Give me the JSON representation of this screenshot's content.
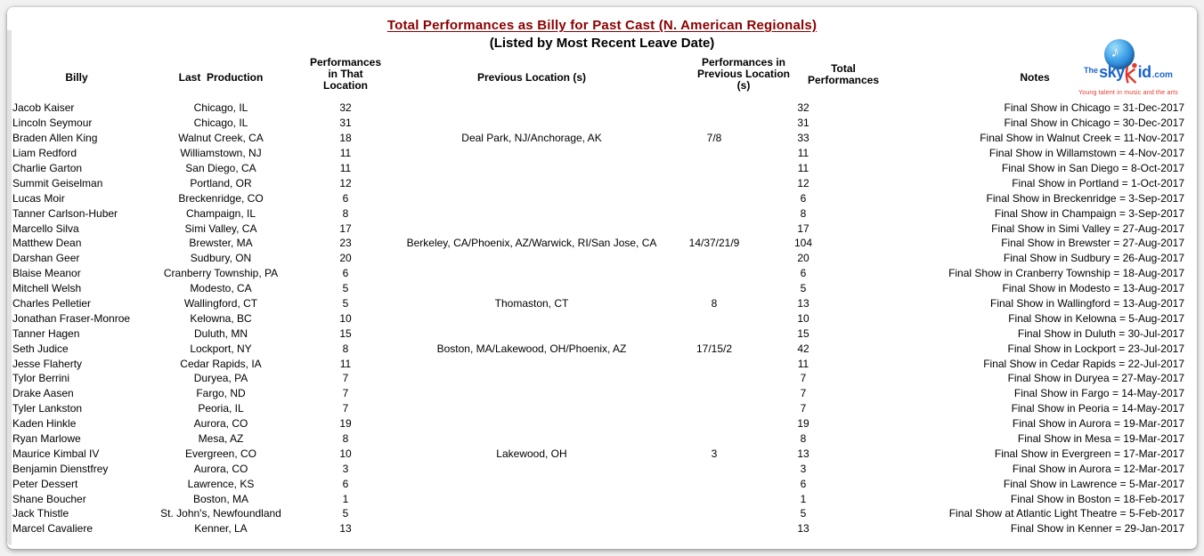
{
  "page": {
    "title": "Total Performances as Billy for Past Cast (N. American Regionals)",
    "subtitle": "(Listed by Most Recent Leave Date)",
    "title_color": "#8B0000"
  },
  "logo": {
    "the": "The",
    "sky": "sky",
    "id": "id",
    "com": ".com",
    "tagline": "Young talent in music and the arts",
    "globe_icon": "globe-music-note-icon",
    "blue": "#1b64cd",
    "red": "#e23a2e"
  },
  "table": {
    "headers": {
      "billy": "Billy",
      "last_production": "Last  Production",
      "perf_that": "Performances\nin That\nLocation",
      "previous_locations": "Previous Location (s)",
      "perf_previous": "Performances in\nPrevious Location\n(s)",
      "total": "Total\nPerformances",
      "notes": "Notes"
    },
    "rows": [
      {
        "billy": "Jacob Kaiser",
        "last_production": "Chicago, IL",
        "perf_that": "32",
        "previous_locations": "",
        "perf_previous": "",
        "total": "32",
        "notes": "Final Show in Chicago = 31-Dec-2017"
      },
      {
        "billy": "Lincoln Seymour",
        "last_production": "Chicago, IL",
        "perf_that": "31",
        "previous_locations": "",
        "perf_previous": "",
        "total": "31",
        "notes": "Final Show in Chicago = 30-Dec-2017"
      },
      {
        "billy": "Braden Allen King",
        "last_production": "Walnut Creek, CA",
        "perf_that": "18",
        "previous_locations": "Deal Park, NJ/Anchorage, AK",
        "perf_previous": "7/8",
        "total": "33",
        "notes": "Final Show in Walnut Creek = 11-Nov-2017"
      },
      {
        "billy": "Liam Redford",
        "last_production": "Williamstown, NJ",
        "perf_that": "11",
        "previous_locations": "",
        "perf_previous": "",
        "total": "11",
        "notes": "Final Show in Willamstown = 4-Nov-2017"
      },
      {
        "billy": "Charlie Garton",
        "last_production": "San Diego, CA",
        "perf_that": "11",
        "previous_locations": "",
        "perf_previous": "",
        "total": "11",
        "notes": "Final Show in San Diego = 8-Oct-2017"
      },
      {
        "billy": "Summit Geiselman",
        "last_production": "Portland, OR",
        "perf_that": "12",
        "previous_locations": "",
        "perf_previous": "",
        "total": "12",
        "notes": "Final Show in Portland = 1-Oct-2017"
      },
      {
        "billy": "Lucas Moir",
        "last_production": "Breckenridge, CO",
        "perf_that": "6",
        "previous_locations": "",
        "perf_previous": "",
        "total": "6",
        "notes": "Final Show in Breckenridge = 3-Sep-2017"
      },
      {
        "billy": "Tanner Carlson-Huber",
        "last_production": "Champaign, IL",
        "perf_that": "8",
        "previous_locations": "",
        "perf_previous": "",
        "total": "8",
        "notes": "Final Show in Champaign = 3-Sep-2017"
      },
      {
        "billy": "Marcello Silva",
        "last_production": "Simi Valley, CA",
        "perf_that": "17",
        "previous_locations": "",
        "perf_previous": "",
        "total": "17",
        "notes": "Final Show in Simi Valley = 27-Aug-2017"
      },
      {
        "billy": "Matthew Dean",
        "last_production": "Brewster, MA",
        "perf_that": "23",
        "previous_locations": "Berkeley, CA/Phoenix, AZ/Warwick, RI/San Jose, CA",
        "perf_previous": "14/37/21/9",
        "total": "104",
        "notes": "Final Show in Brewster = 27-Aug-2017"
      },
      {
        "billy": "Darshan Geer",
        "last_production": "Sudbury, ON",
        "perf_that": "20",
        "previous_locations": "",
        "perf_previous": "",
        "total": "20",
        "notes": "Final Show in Sudbury = 26-Aug-2017"
      },
      {
        "billy": "Blaise Meanor",
        "last_production": "Cranberry Township, PA",
        "perf_that": "6",
        "previous_locations": "",
        "perf_previous": "",
        "total": "6",
        "notes": "Final Show in Cranberry Township = 18-Aug-2017"
      },
      {
        "billy": "Mitchell Welsh",
        "last_production": "Modesto, CA",
        "perf_that": "5",
        "previous_locations": "",
        "perf_previous": "",
        "total": "5",
        "notes": "Final Show in Modesto = 13-Aug-2017"
      },
      {
        "billy": "Charles Pelletier",
        "last_production": "Wallingford, CT",
        "perf_that": "5",
        "previous_locations": "Thomaston, CT",
        "perf_previous": "8",
        "total": "13",
        "notes": "Final Show in Wallingford = 13-Aug-2017"
      },
      {
        "billy": "Jonathan Fraser-Monroe",
        "last_production": "Kelowna, BC",
        "perf_that": "10",
        "previous_locations": "",
        "perf_previous": "",
        "total": "10",
        "notes": "Final Show in Kelowna = 5-Aug-2017"
      },
      {
        "billy": "Tanner Hagen",
        "last_production": "Duluth, MN",
        "perf_that": "15",
        "previous_locations": "",
        "perf_previous": "",
        "total": "15",
        "notes": "Final Show in Duluth = 30-Jul-2017"
      },
      {
        "billy": "Seth Judice",
        "last_production": "Lockport, NY",
        "perf_that": "8",
        "previous_locations": "Boston, MA/Lakewood, OH/Phoenix, AZ",
        "perf_previous": "17/15/2",
        "total": "42",
        "notes": "Final Show in Lockport = 23-Jul-2017"
      },
      {
        "billy": "Jesse Flaherty",
        "last_production": "Cedar Rapids, IA",
        "perf_that": "11",
        "previous_locations": "",
        "perf_previous": "",
        "total": "11",
        "notes": "Final Show in Cedar Rapids = 22-Jul-2017"
      },
      {
        "billy": "Tylor Berrini",
        "last_production": "Duryea, PA",
        "perf_that": "7",
        "previous_locations": "",
        "perf_previous": "",
        "total": "7",
        "notes": "Final Show in Duryea = 27-May-2017"
      },
      {
        "billy": "Drake Aasen",
        "last_production": "Fargo, ND",
        "perf_that": "7",
        "previous_locations": "",
        "perf_previous": "",
        "total": "7",
        "notes": "Final Show in Fargo = 14-May-2017"
      },
      {
        "billy": "Tyler Lankston",
        "last_production": "Peoria, IL",
        "perf_that": "7",
        "previous_locations": "",
        "perf_previous": "",
        "total": "7",
        "notes": "Final Show in Peoria = 14-May-2017"
      },
      {
        "billy": "Kaden Hinkle",
        "last_production": "Aurora, CO",
        "perf_that": "19",
        "previous_locations": "",
        "perf_previous": "",
        "total": "19",
        "notes": "Final Show in Aurora = 19-Mar-2017"
      },
      {
        "billy": "Ryan Marlowe",
        "last_production": "Mesa, AZ",
        "perf_that": "8",
        "previous_locations": "",
        "perf_previous": "",
        "total": "8",
        "notes": "Final Show in Mesa = 19-Mar-2017"
      },
      {
        "billy": "Maurice Kimbal IV",
        "last_production": "Evergreen, CO",
        "perf_that": "10",
        "previous_locations": "Lakewood, OH",
        "perf_previous": "3",
        "total": "13",
        "notes": "Final Show in Evergreen = 17-Mar-2017"
      },
      {
        "billy": "Benjamin Dienstfrey",
        "last_production": "Aurora, CO",
        "perf_that": "3",
        "previous_locations": "",
        "perf_previous": "",
        "total": "3",
        "notes": "Final Show in Aurora = 12-Mar-2017"
      },
      {
        "billy": "Peter Dessert",
        "last_production": "Lawrence, KS",
        "perf_that": "6",
        "previous_locations": "",
        "perf_previous": "",
        "total": "6",
        "notes": "Final Show in Lawrence = 5-Mar-2017"
      },
      {
        "billy": "Shane Boucher",
        "last_production": "Boston, MA",
        "perf_that": "1",
        "previous_locations": "",
        "perf_previous": "",
        "total": "1",
        "notes": "Final Show in Boston = 18-Feb-2017"
      },
      {
        "billy": "Jack Thistle",
        "last_production": "St. John's, Newfoundland",
        "perf_that": "5",
        "previous_locations": "",
        "perf_previous": "",
        "total": "5",
        "notes": "Final Show at Atlantic Light Theatre = 5-Feb-2017"
      },
      {
        "billy": "Marcel Cavaliere",
        "last_production": "Kenner, LA",
        "perf_that": "13",
        "previous_locations": "",
        "perf_previous": "",
        "total": "13",
        "notes": "Final Show in Kenner = 29-Jan-2017"
      }
    ]
  }
}
